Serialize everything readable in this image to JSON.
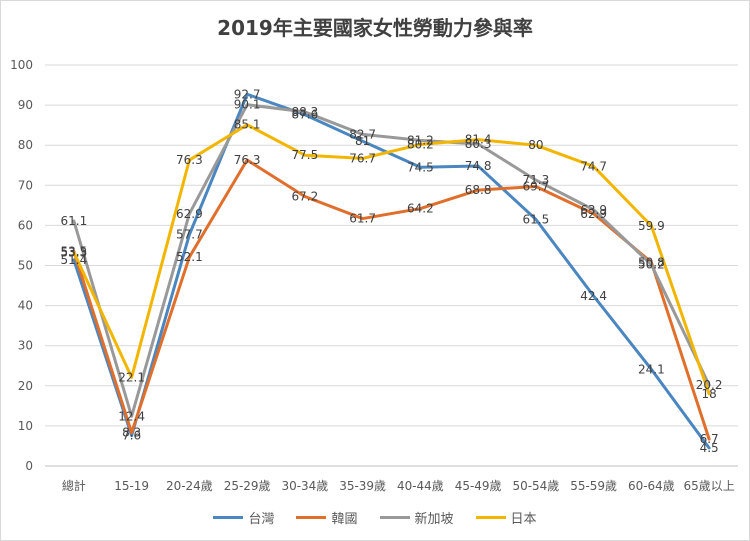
{
  "chart_data": {
    "type": "line",
    "title": "2019年主要國家女性勞動力參與率",
    "xlabel": "",
    "ylabel": "",
    "ylim": [
      0,
      100
    ],
    "yticks": [
      0,
      10,
      20,
      30,
      40,
      50,
      60,
      70,
      80,
      90,
      100
    ],
    "grid": true,
    "legend_position": "bottom",
    "categories": [
      "總計",
      "15-19",
      "20-24歲",
      "25-29歲",
      "30-34歲",
      "35-39歲",
      "40-44歲",
      "45-49歲",
      "50-54歲",
      "55-59歲",
      "60-64歲",
      "65歲以上"
    ],
    "series": [
      {
        "name": "台灣",
        "color": "#4a86c0",
        "values": [
          51.4,
          7.6,
          57.7,
          92.7,
          87.6,
          81,
          74.5,
          74.8,
          61.5,
          42.4,
          24.1,
          4.5
        ]
      },
      {
        "name": "韓國",
        "color": "#e06f2c",
        "values": [
          53.5,
          8.3,
          52.1,
          76.3,
          67.2,
          61.7,
          64.2,
          68.8,
          69.7,
          62.9,
          50.8,
          6.7
        ]
      },
      {
        "name": "新加坡",
        "color": "#999999",
        "values": [
          61.1,
          12.4,
          62.9,
          90.1,
          88.3,
          82.7,
          81.2,
          80.3,
          71.3,
          63.9,
          50.2,
          20.2
        ]
      },
      {
        "name": "日本",
        "color": "#f2b600",
        "values": [
          53.3,
          22.1,
          76.3,
          85.1,
          77.5,
          76.7,
          80.2,
          81.4,
          80,
          74.7,
          59.9,
          18
        ]
      }
    ]
  }
}
